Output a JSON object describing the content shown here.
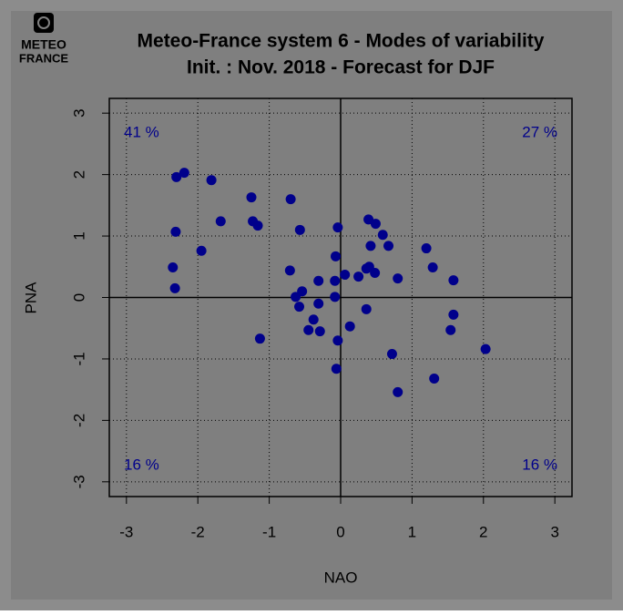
{
  "chart_data": {
    "type": "scatter",
    "title": "Meteo-France system 6 - Modes of variability",
    "subtitle": "Init. : Nov. 2018 - Forecast for DJF",
    "logo": [
      "METEO",
      "FRANCE"
    ],
    "x_label": "NAO",
    "y_label": "PNA",
    "annotations": [
      "41 %",
      "27 %",
      "16 %",
      "16 %"
    ],
    "color": "#00008b",
    "xlim": [
      -3.24,
      3.24
    ],
    "ylim": [
      -3.24,
      3.24
    ],
    "xticks": [
      -3,
      -2,
      -1,
      0,
      1,
      2,
      3
    ],
    "yticks": [
      -3,
      -2,
      -1,
      0,
      1,
      2,
      3
    ],
    "grid": true,
    "x": [
      -2.3,
      -2.19,
      -1.81,
      -2.31,
      -2.35,
      -2.32,
      -1.95,
      -1.68,
      -1.25,
      -1.23,
      -1.16,
      -1.13,
      -0.7,
      -0.71,
      -0.57,
      -0.63,
      -0.58,
      -0.54,
      -0.31,
      -0.31,
      -0.38,
      -0.45,
      -0.29,
      -0.08,
      -0.08,
      -0.07,
      -0.04,
      -0.04,
      -0.06,
      0.06,
      0.13,
      0.25,
      0.39,
      0.49,
      0.36,
      0.4,
      0.42,
      0.59,
      0.67,
      0.48,
      0.36,
      0.8,
      0.72,
      0.8,
      1.2,
      1.29,
      1.31,
      1.58,
      1.58,
      1.54,
      2.03
    ],
    "values": [
      1.96,
      2.03,
      1.91,
      1.07,
      0.49,
      0.15,
      0.76,
      1.24,
      1.63,
      1.24,
      1.17,
      -0.67,
      1.6,
      0.44,
      1.1,
      0.01,
      -0.15,
      0.1,
      0.27,
      -0.1,
      -0.36,
      -0.53,
      -0.55,
      0.27,
      0.01,
      0.67,
      1.14,
      -0.7,
      -1.16,
      0.37,
      -0.47,
      0.34,
      1.27,
      1.2,
      0.47,
      0.5,
      0.84,
      1.02,
      0.84,
      0.4,
      -0.19,
      0.31,
      -0.92,
      -1.54,
      0.8,
      0.49,
      -1.32,
      0.28,
      -0.28,
      -0.53,
      -0.84
    ]
  }
}
